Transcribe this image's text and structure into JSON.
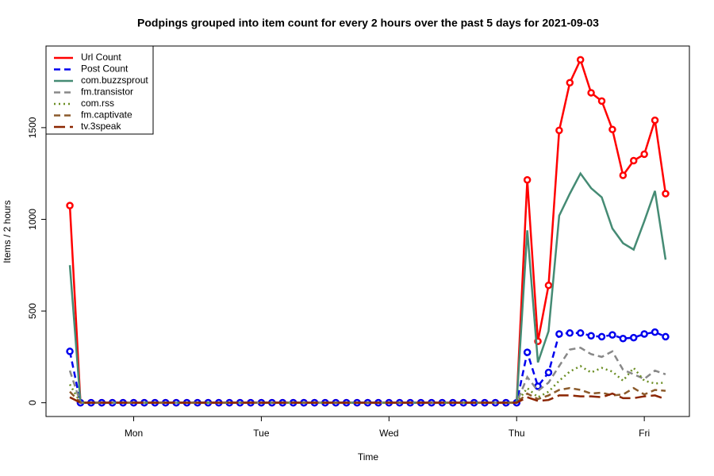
{
  "chart_data": {
    "type": "line",
    "title": "Podpings grouped into item count for every 2 hours  over the past 5 days for 2021-09-03",
    "x_label": "Time",
    "y_label": "Items / 2 hours",
    "categories": [
      null,
      null,
      null,
      null,
      null,
      null,
      "Mon",
      null,
      null,
      null,
      null,
      null,
      null,
      null,
      null,
      null,
      null,
      null,
      "Tue",
      null,
      null,
      null,
      null,
      null,
      null,
      null,
      null,
      null,
      null,
      null,
      "Wed",
      null,
      null,
      null,
      null,
      null,
      null,
      null,
      null,
      null,
      null,
      null,
      "Thu",
      null,
      null,
      null,
      null,
      null,
      null,
      null,
      null,
      null,
      null,
      null,
      "Fri",
      null,
      null
    ],
    "ylim": [
      -75,
      1945
    ],
    "yticks": [
      0,
      500,
      1000,
      1500
    ],
    "legend": "top-left",
    "series": [
      {
        "name": "Url Count",
        "color": "#ff0000",
        "line_style": "solid",
        "markers": true,
        "values": [
          1075,
          0,
          0,
          0,
          0,
          0,
          0,
          0,
          0,
          0,
          0,
          0,
          0,
          0,
          0,
          0,
          0,
          0,
          0,
          0,
          0,
          0,
          0,
          0,
          0,
          0,
          0,
          0,
          0,
          0,
          0,
          0,
          0,
          0,
          0,
          0,
          0,
          0,
          0,
          0,
          0,
          0,
          0,
          1215,
          335,
          640,
          1485,
          1745,
          1870,
          1690,
          1645,
          1490,
          1240,
          1320,
          1355,
          1540,
          1140
        ]
      },
      {
        "name": "Post Count",
        "color": "#0000ee",
        "line_style": "dashed",
        "markers": true,
        "values": [
          280,
          0,
          0,
          0,
          0,
          0,
          0,
          0,
          0,
          0,
          0,
          0,
          0,
          0,
          0,
          0,
          0,
          0,
          0,
          0,
          0,
          0,
          0,
          0,
          0,
          0,
          0,
          0,
          0,
          0,
          0,
          0,
          0,
          0,
          0,
          0,
          0,
          0,
          0,
          0,
          0,
          0,
          0,
          275,
          90,
          165,
          375,
          380,
          380,
          365,
          360,
          370,
          350,
          355,
          375,
          385,
          360
        ]
      },
      {
        "name": "com.buzzsprout",
        "color": "#458b74",
        "line_style": "solid",
        "markers": false,
        "values": [
          750,
          0,
          0,
          0,
          0,
          0,
          0,
          0,
          0,
          0,
          0,
          0,
          0,
          0,
          0,
          0,
          0,
          0,
          0,
          0,
          0,
          0,
          0,
          0,
          0,
          0,
          0,
          0,
          0,
          0,
          0,
          0,
          0,
          0,
          0,
          0,
          0,
          0,
          0,
          0,
          0,
          0,
          0,
          940,
          220,
          390,
          1020,
          1140,
          1250,
          1170,
          1120,
          950,
          870,
          835,
          990,
          1155,
          780
        ]
      },
      {
        "name": "fm.transistor",
        "color": "#888888",
        "line_style": "dashed",
        "markers": false,
        "values": [
          175,
          0,
          0,
          0,
          0,
          0,
          0,
          0,
          0,
          0,
          0,
          0,
          0,
          0,
          0,
          0,
          0,
          0,
          0,
          0,
          0,
          0,
          0,
          0,
          0,
          0,
          0,
          0,
          0,
          0,
          0,
          0,
          0,
          0,
          0,
          0,
          0,
          0,
          0,
          0,
          0,
          0,
          0,
          140,
          65,
          110,
          200,
          290,
          300,
          265,
          250,
          280,
          180,
          155,
          130,
          175,
          155
        ]
      },
      {
        "name": "com.rss",
        "color": "#6b8e23",
        "line_style": "dotted",
        "markers": false,
        "values": [
          100,
          0,
          0,
          0,
          0,
          0,
          0,
          0,
          0,
          0,
          0,
          0,
          0,
          0,
          0,
          0,
          0,
          0,
          0,
          0,
          0,
          0,
          0,
          0,
          0,
          0,
          0,
          0,
          0,
          0,
          0,
          0,
          0,
          0,
          0,
          0,
          0,
          0,
          0,
          0,
          0,
          0,
          0,
          80,
          30,
          60,
          120,
          170,
          200,
          165,
          190,
          170,
          120,
          190,
          120,
          105,
          110
        ]
      },
      {
        "name": "fm.captivate",
        "color": "#8b5a2b",
        "line_style": "dashed",
        "markers": false,
        "values": [
          60,
          0,
          0,
          0,
          0,
          0,
          0,
          0,
          0,
          0,
          0,
          0,
          0,
          0,
          0,
          0,
          0,
          0,
          0,
          0,
          0,
          0,
          0,
          0,
          0,
          0,
          0,
          0,
          0,
          0,
          0,
          0,
          0,
          0,
          0,
          0,
          0,
          0,
          0,
          0,
          0,
          0,
          0,
          50,
          20,
          40,
          70,
          80,
          70,
          50,
          55,
          40,
          45,
          80,
          45,
          70,
          65
        ]
      },
      {
        "name": "tv.3speak",
        "color": "#8b2500",
        "line_style": "longdash",
        "markers": false,
        "values": [
          30,
          0,
          0,
          0,
          0,
          0,
          0,
          0,
          0,
          0,
          0,
          0,
          0,
          0,
          0,
          0,
          0,
          0,
          0,
          0,
          0,
          0,
          0,
          0,
          0,
          0,
          0,
          0,
          0,
          0,
          0,
          0,
          0,
          0,
          0,
          0,
          0,
          0,
          0,
          0,
          0,
          0,
          0,
          30,
          10,
          15,
          40,
          40,
          35,
          35,
          30,
          50,
          25,
          25,
          35,
          40,
          20
        ]
      }
    ]
  }
}
